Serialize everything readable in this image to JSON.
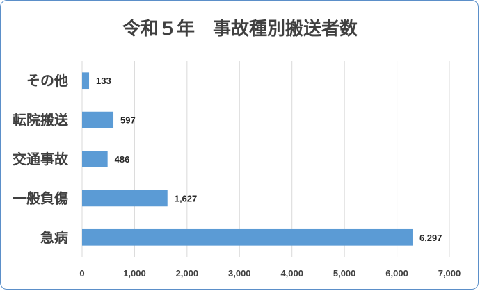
{
  "chart_data": {
    "type": "bar",
    "orientation": "horizontal",
    "title": "令和５年　事故種別搬送者数",
    "categories": [
      "その他",
      "転院搬送",
      "交通事故",
      "一般負傷",
      "急病"
    ],
    "values": [
      133,
      597,
      486,
      1627,
      6297
    ],
    "value_labels": [
      "133",
      "597",
      "486",
      "1,627",
      "6,297"
    ],
    "xlim": [
      0,
      7000
    ],
    "x_ticks": [
      0,
      1000,
      2000,
      3000,
      4000,
      5000,
      6000,
      7000
    ],
    "x_tick_labels": [
      "0",
      "1,000",
      "2,000",
      "3,000",
      "4,000",
      "5,000",
      "6,000",
      "7,000"
    ],
    "grid": true,
    "bar_color": "#5b9bd5",
    "border_color": "#5b8fc9"
  }
}
